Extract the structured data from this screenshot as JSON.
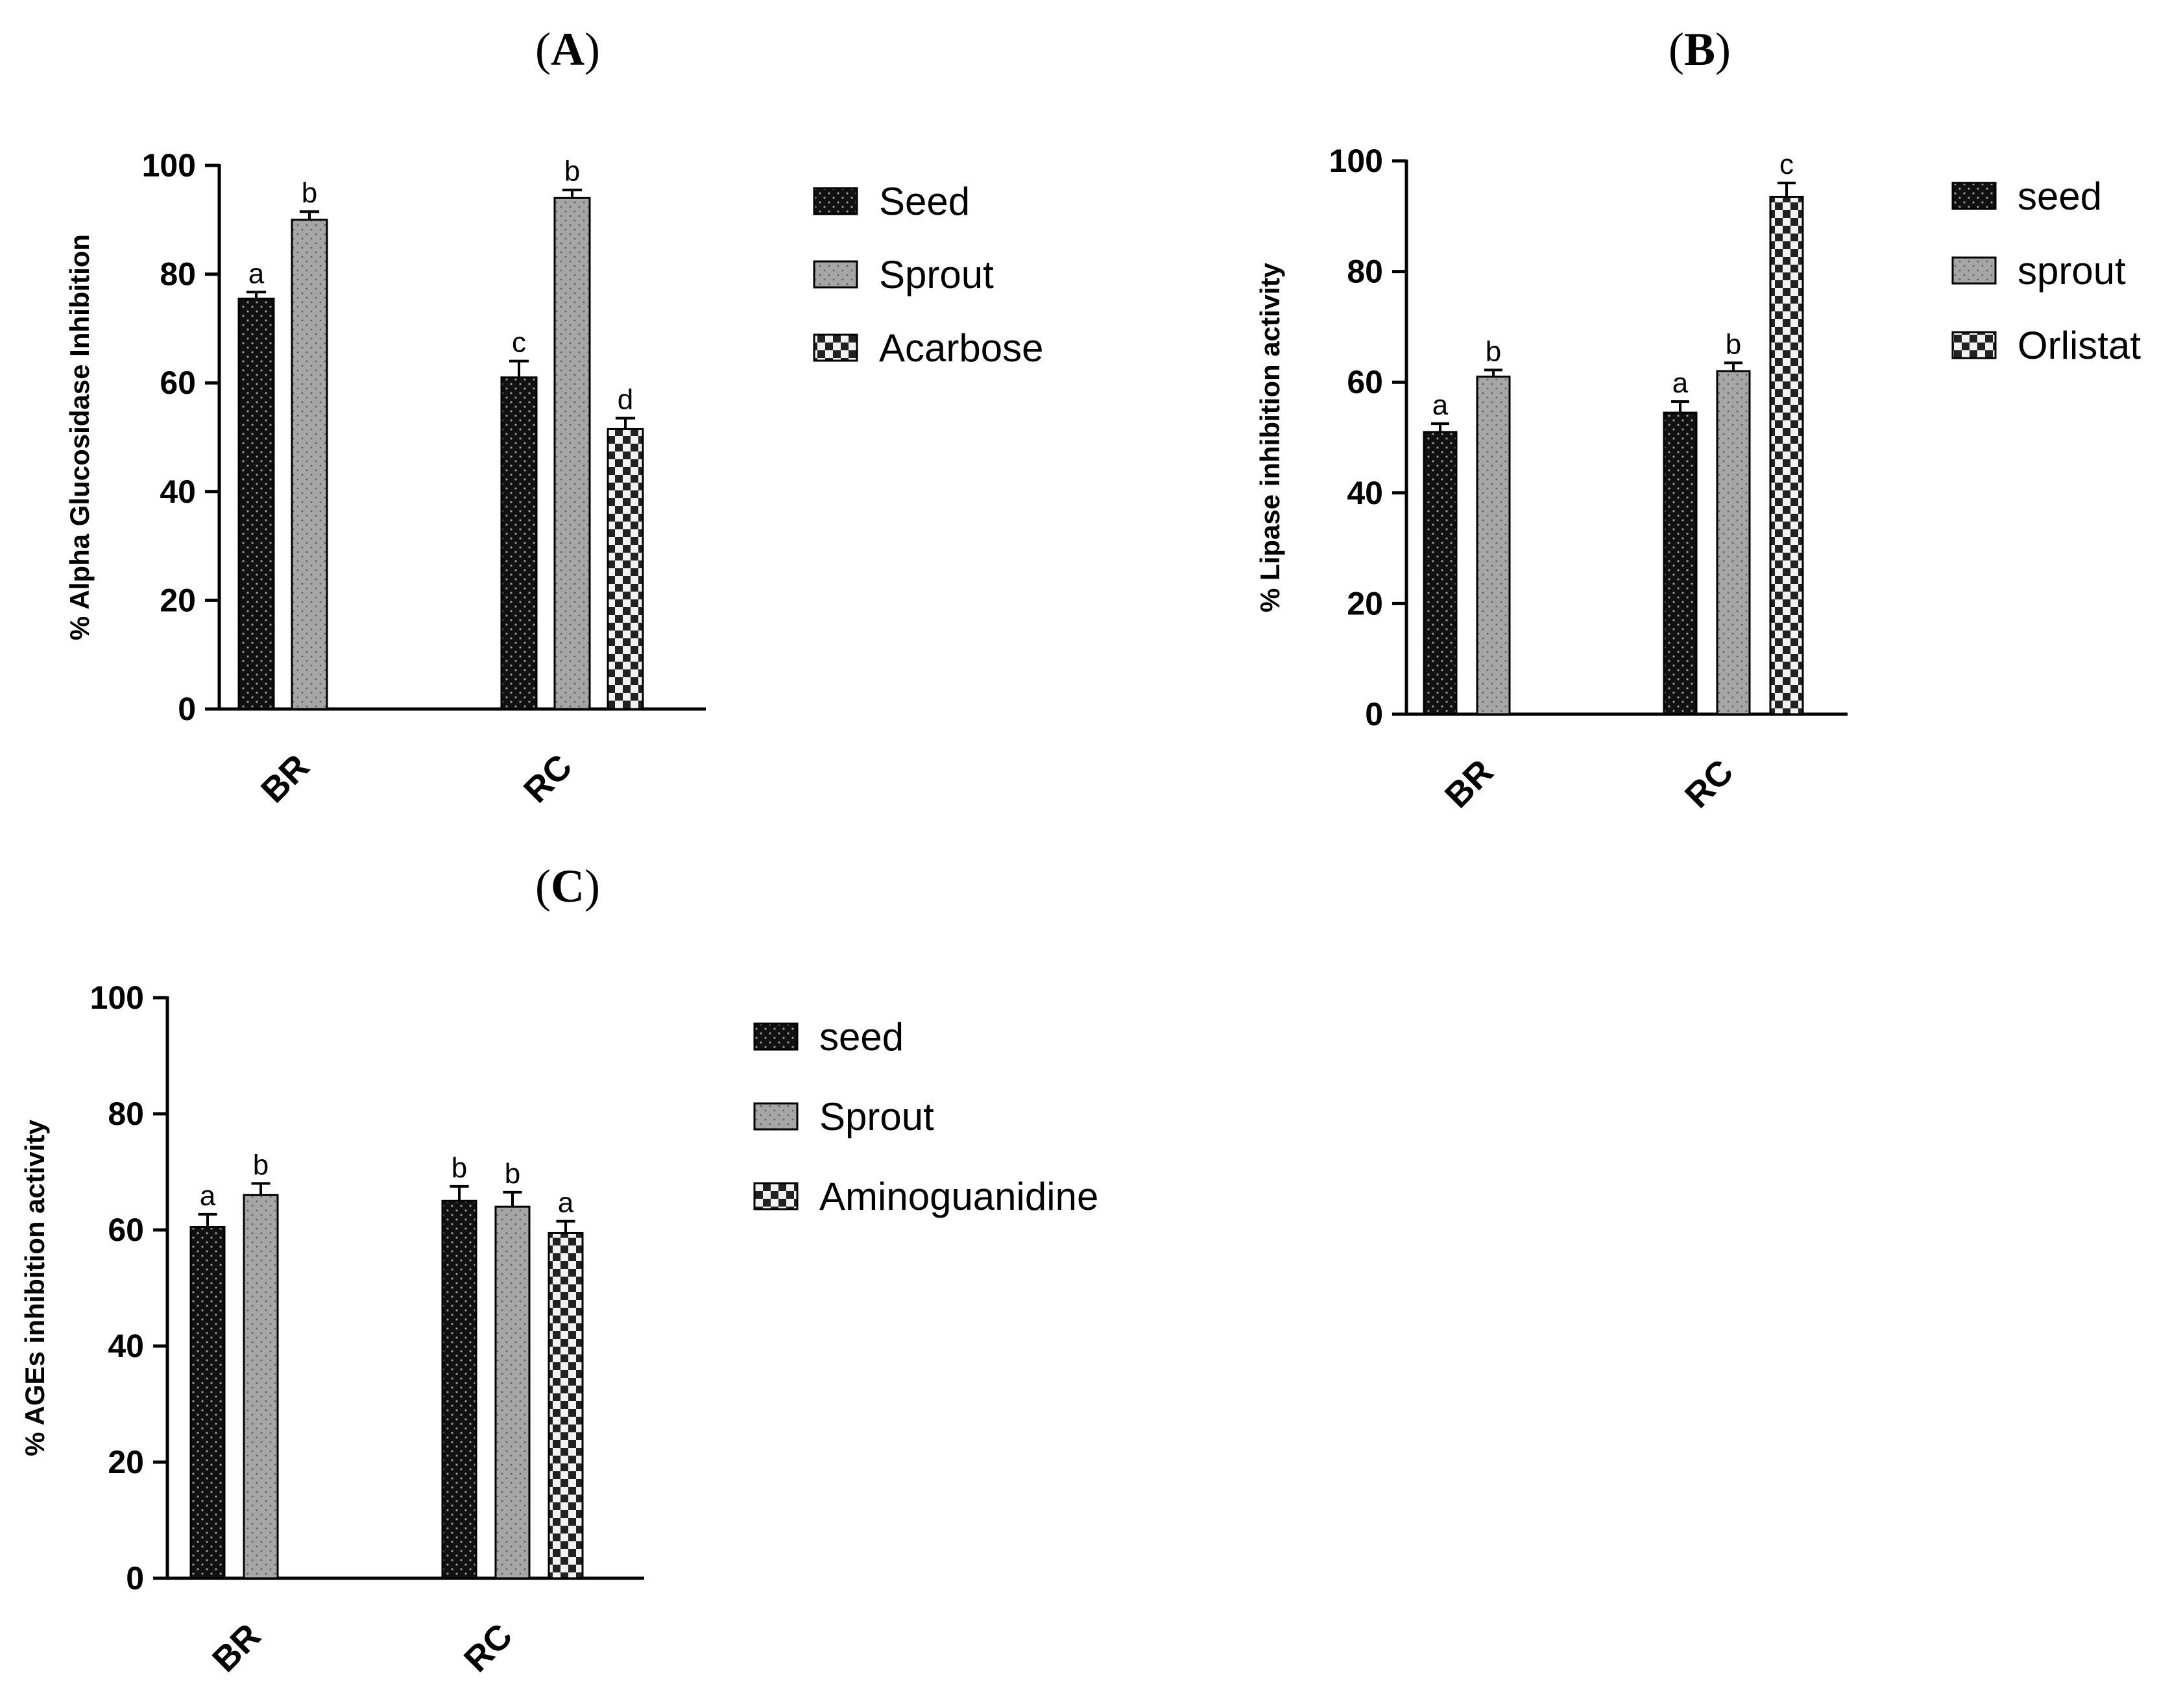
{
  "figure": {
    "panels": [
      {
        "open": "(",
        "letter": "A",
        "close": ")"
      },
      {
        "open": "(",
        "letter": "B",
        "close": ")"
      },
      {
        "open": "(",
        "letter": "C",
        "close": ")"
      }
    ]
  },
  "chart_data": [
    {
      "type": "bar",
      "panel": "A",
      "title": "(A)",
      "xlabel": "",
      "ylabel": "% Alpha Glucosidase Inhibition",
      "ylim": [
        0,
        100
      ],
      "yticks": [
        0,
        20,
        40,
        60,
        80,
        100
      ],
      "categories": [
        "BR",
        "RC"
      ],
      "series": [
        {
          "name": "Seed",
          "pattern": "seed",
          "values": [
            75.5,
            61
          ],
          "errors": [
            1.2,
            3
          ],
          "labels": [
            "a",
            "c"
          ]
        },
        {
          "name": "Sprout",
          "pattern": "sprout",
          "values": [
            90,
            94
          ],
          "errors": [
            1.5,
            1.5
          ],
          "labels": [
            "b",
            "b"
          ]
        },
        {
          "name": "Acarbose",
          "pattern": "checker",
          "values": [
            null,
            51.5
          ],
          "errors": [
            null,
            2
          ],
          "labels": [
            null,
            "d"
          ]
        }
      ],
      "legend": "right",
      "colors": {
        "seed": "#111111",
        "sprout": "#a6a6a6",
        "checker_dark": "#222222",
        "checker_light": "#f2f2f2"
      }
    },
    {
      "type": "bar",
      "panel": "B",
      "title": "(B)",
      "xlabel": "",
      "ylabel": "% Lipase inhibition activity",
      "ylim": [
        0,
        100
      ],
      "yticks": [
        0,
        20,
        40,
        60,
        80,
        100
      ],
      "categories": [
        "BR",
        "RC"
      ],
      "series": [
        {
          "name": "seed",
          "pattern": "seed",
          "values": [
            51,
            54.5
          ],
          "errors": [
            1.5,
            2
          ],
          "labels": [
            "a",
            "a"
          ]
        },
        {
          "name": "sprout",
          "pattern": "sprout",
          "values": [
            61,
            62
          ],
          "errors": [
            1.2,
            1.5
          ],
          "labels": [
            "b",
            "b"
          ]
        },
        {
          "name": "Orlistat",
          "pattern": "checker",
          "values": [
            null,
            93.5
          ],
          "errors": [
            null,
            2.5
          ],
          "labels": [
            null,
            "c"
          ]
        }
      ],
      "legend": "right",
      "colors": {
        "seed": "#111111",
        "sprout": "#a6a6a6",
        "checker_dark": "#222222",
        "checker_light": "#f2f2f2"
      }
    },
    {
      "type": "bar",
      "panel": "C",
      "title": "(C)",
      "xlabel": "",
      "ylabel": "% AGEs inhibition activity",
      "ylim": [
        0,
        100
      ],
      "yticks": [
        0,
        20,
        40,
        60,
        80,
        100
      ],
      "categories": [
        "BR",
        "RC"
      ],
      "series": [
        {
          "name": "seed",
          "pattern": "seed",
          "values": [
            60.5,
            65
          ],
          "errors": [
            2.2,
            2.5
          ],
          "labels": [
            "a",
            "b"
          ]
        },
        {
          "name": "Sprout",
          "pattern": "sprout",
          "values": [
            66,
            64
          ],
          "errors": [
            2,
            2.5
          ],
          "labels": [
            "b",
            "b"
          ]
        },
        {
          "name": "Aminoguanidine",
          "pattern": "checker",
          "values": [
            null,
            59.5
          ],
          "errors": [
            null,
            2
          ],
          "labels": [
            null,
            "a"
          ]
        }
      ],
      "legend": "right",
      "colors": {
        "seed": "#111111",
        "sprout": "#a6a6a6",
        "checker_dark": "#222222",
        "checker_light": "#f2f2f2"
      }
    }
  ]
}
